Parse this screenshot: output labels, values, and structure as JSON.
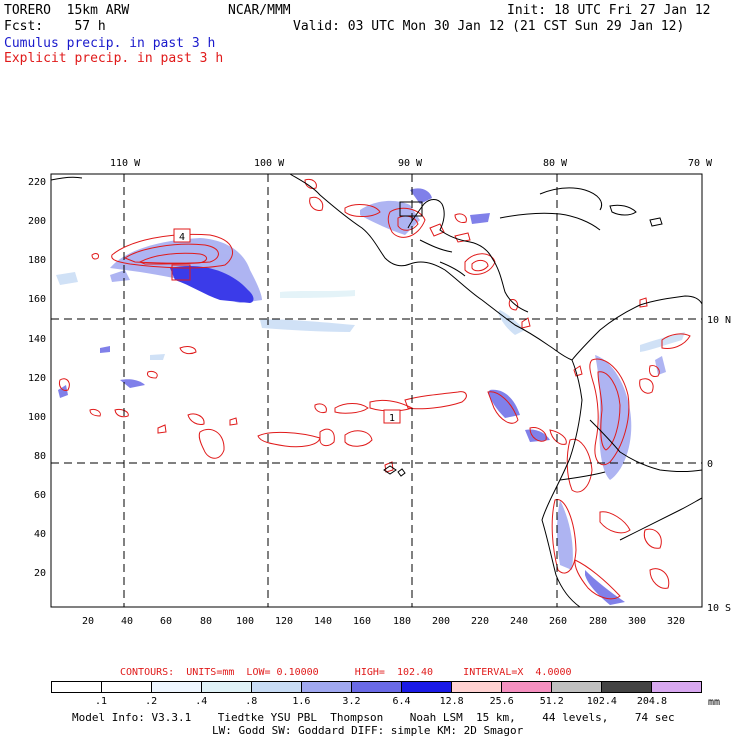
{
  "header": {
    "model": "TORERO  15km ARW",
    "org": "NCAR/MMM",
    "init": "Init: 18 UTC Fri 27 Jan 12",
    "fcst": "Fcst:    57 h",
    "valid": "Valid: 03 UTC Mon 30 Jan 12 (21 CST Sun 29 Jan 12)",
    "cumulus": "Cumulus precip. in past 3 h",
    "explicit": "Explicit precip. in past 3 h"
  },
  "map": {
    "lon_labels": [
      "110 W",
      "100 W",
      "90 W",
      "80 W",
      "70 W"
    ],
    "lat_labels": [
      "10 N",
      "0",
      "10 S"
    ],
    "y_ticks": [
      "220",
      "200",
      "180",
      "160",
      "140",
      "120",
      "100",
      "80",
      "60",
      "40",
      "20"
    ],
    "x_ticks": [
      "20",
      "40",
      "60",
      "80",
      "100",
      "120",
      "140",
      "160",
      "180",
      "200",
      "220",
      "240",
      "260",
      "280",
      "300",
      "320"
    ],
    "box_labels": [
      "4",
      "1"
    ],
    "colors": {
      "cumulus": "#1a1acc",
      "explicit": "#e01a1a",
      "coast": "#000000"
    }
  },
  "footer": {
    "contours": "CONTOURS:  UNITS=mm  LOW= 0.10000      HIGH=  102.40     INTERVAL=X  4.0000",
    "colorbar_labels": [
      ".1",
      ".2",
      ".4",
      ".8",
      "1.6",
      "3.2",
      "6.4",
      "12.8",
      "25.6",
      "51.2",
      "102.4",
      "204.8"
    ],
    "colorbar_units": "mm",
    "colorbar_colors": [
      "#ffffff",
      "#ffffff",
      "#eef6ff",
      "#e0f2f7",
      "#c8dcf5",
      "#a0a8f0",
      "#6a6ae6",
      "#1a1ae6",
      "#ffd2d2",
      "#f590c0",
      "#c0c0c0",
      "#444444",
      "#d8a8f0"
    ],
    "model_info": "Model Info: V3.3.1    Tiedtke YSU PBL  Thompson    Noah LSM  15 km,    44 levels,    74 sec",
    "model_info2": "LW: Godd SW: Goddard DIFF: simple KM: 2D Smagor"
  }
}
